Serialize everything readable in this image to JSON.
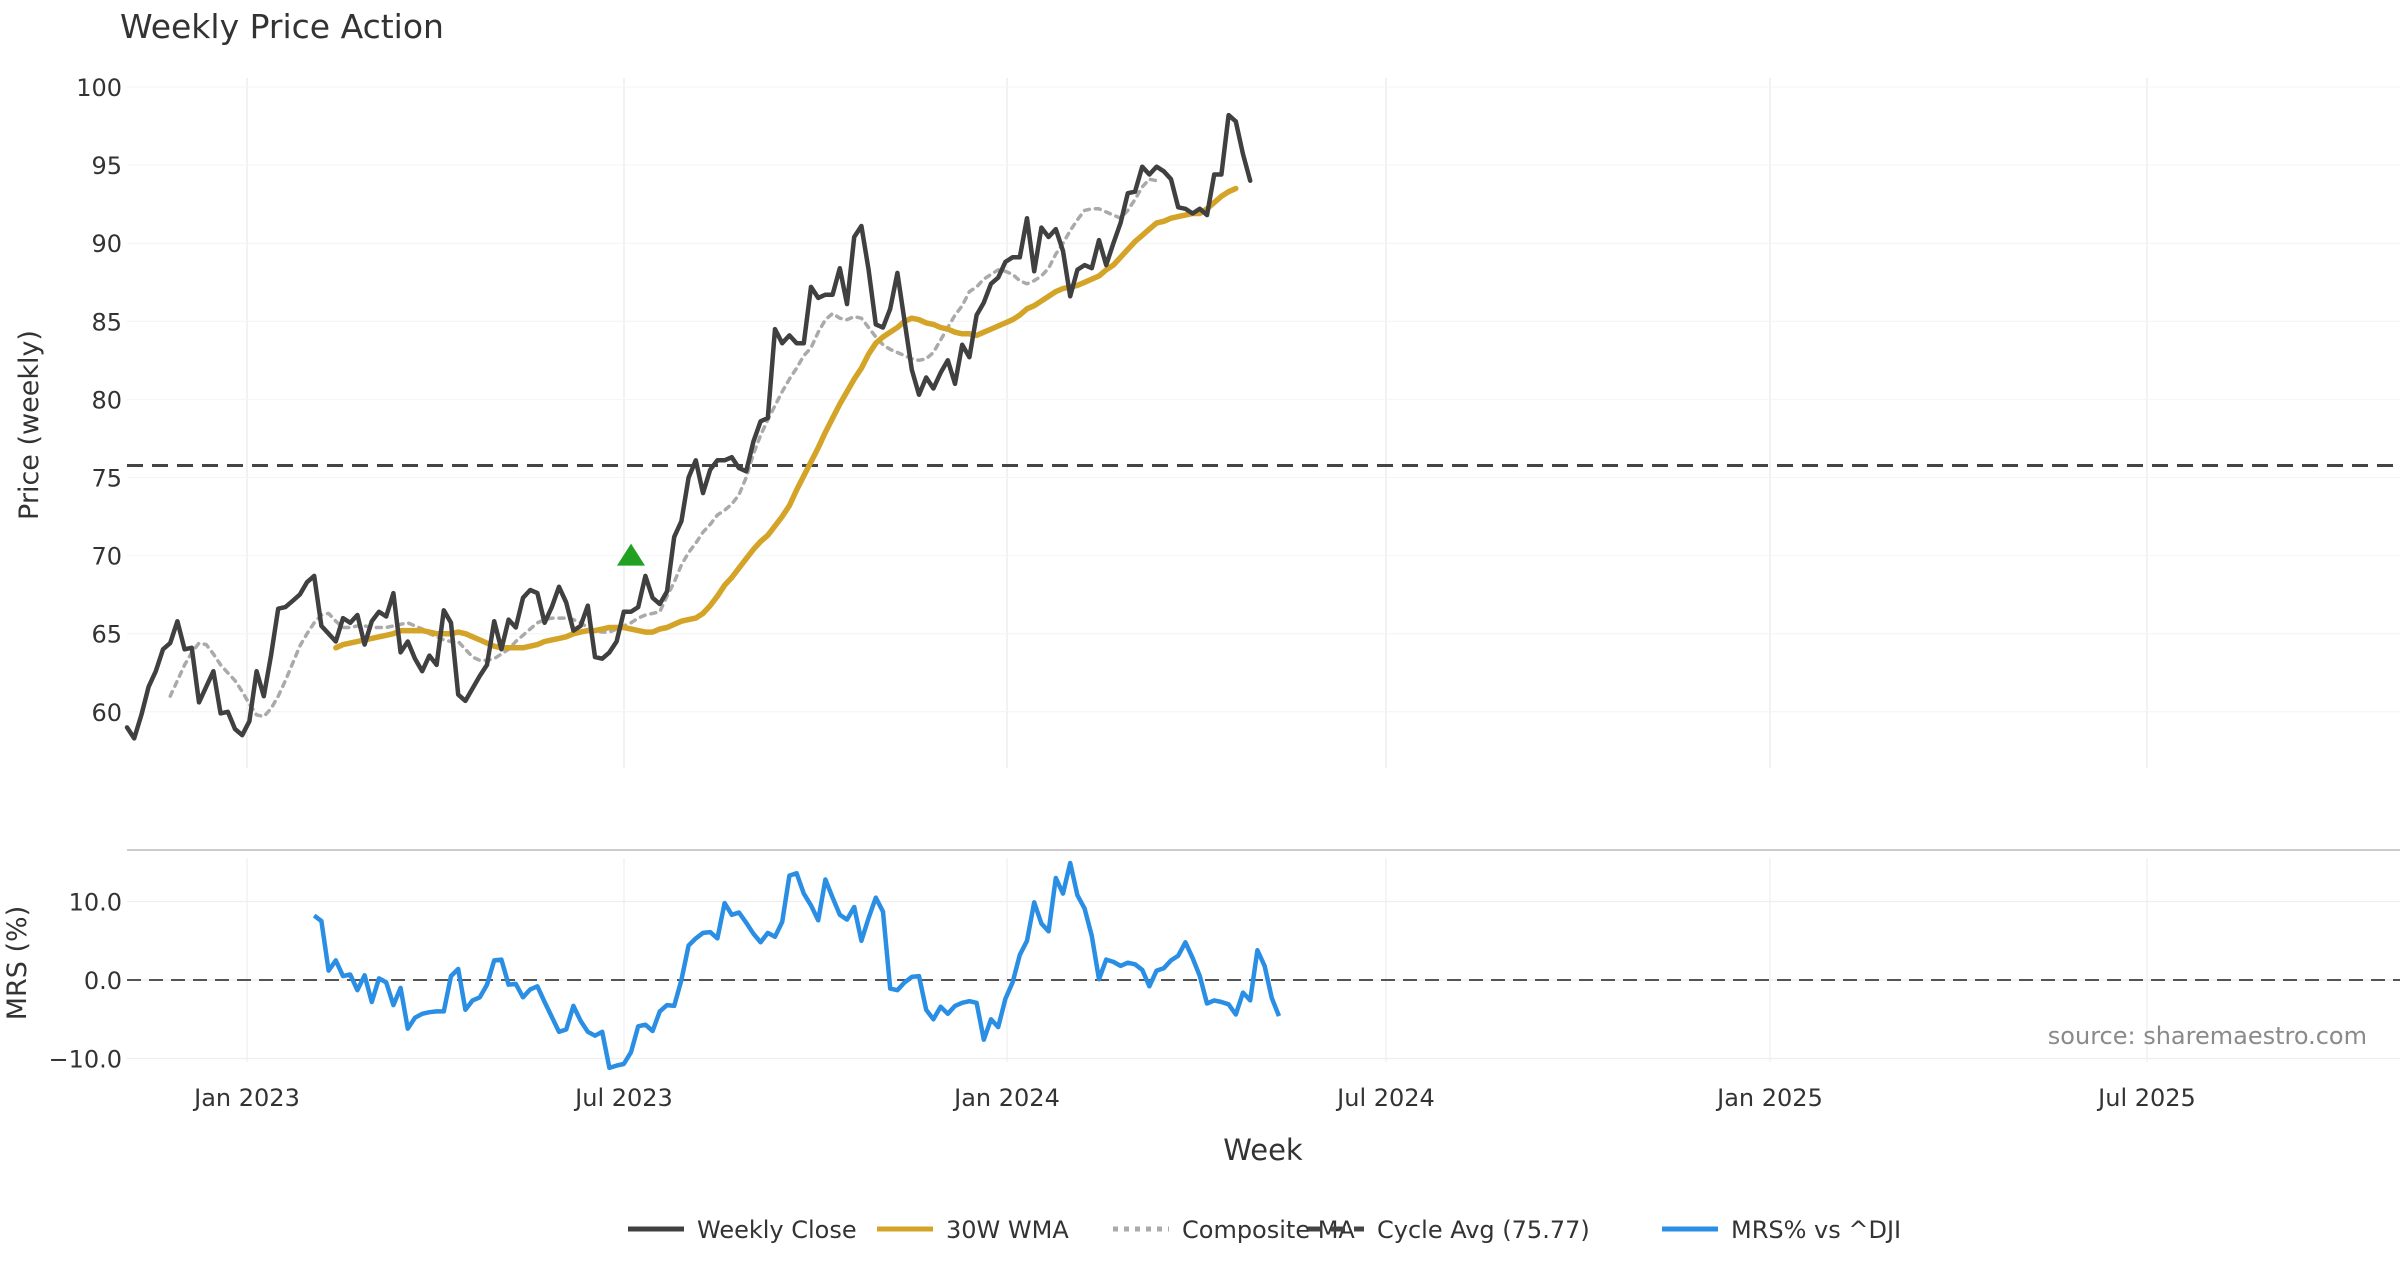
{
  "chart_data": {
    "type": "line",
    "title": "Weekly Price Action",
    "xlabel": "Week",
    "x_tick_labels": [
      "Jan 2023",
      "Jul 2023",
      "Jan 2024",
      "Jul 2024",
      "Jan 2025",
      "Jul 2025"
    ],
    "price_panel": {
      "ylabel": "Price (weekly)",
      "ylim": [
        56,
        101
      ],
      "y_ticks": [
        "60",
        "65",
        "70",
        "75",
        "80",
        "85",
        "90",
        "95",
        "100"
      ],
      "cycle_avg": 75.77,
      "signal_marker": {
        "week_index": 70,
        "value": 70
      },
      "series": [
        {
          "name": "Weekly Close",
          "color": "#404040",
          "start": 0,
          "values": [
            59.0,
            58.3,
            59.8,
            61.6,
            62.6,
            64.0,
            64.4,
            65.8,
            64.0,
            64.1,
            60.6,
            61.6,
            62.6,
            59.9,
            60.0,
            58.9,
            58.5,
            59.4,
            62.6,
            61.0,
            63.6,
            66.6,
            66.7,
            67.1,
            67.5,
            68.3,
            68.7,
            65.5,
            65.0,
            64.5,
            66.0,
            65.7,
            66.2,
            64.3,
            65.8,
            66.4,
            66.1,
            67.6,
            63.8,
            64.5,
            63.4,
            62.6,
            63.6,
            63.0,
            66.5,
            65.7,
            61.1,
            60.7,
            61.5,
            62.3,
            63.0,
            65.8,
            64.0,
            65.9,
            65.4,
            67.3,
            67.8,
            67.6,
            65.7,
            66.7,
            68.0,
            67.0,
            65.2,
            65.5,
            66.8,
            63.5,
            63.4,
            63.8,
            64.5,
            66.4,
            66.4,
            66.7,
            68.7,
            67.3,
            66.9,
            67.7,
            71.2,
            72.2,
            75.0,
            76.1,
            74.0,
            75.5,
            76.1,
            76.1,
            76.3,
            75.6,
            75.4,
            77.3,
            78.6,
            78.8,
            84.5,
            83.6,
            84.1,
            83.6,
            83.6,
            87.2,
            86.5,
            86.7,
            86.7,
            88.4,
            86.1,
            90.4,
            91.1,
            88.3,
            84.8,
            84.6,
            85.8,
            88.1,
            85.0,
            81.9,
            80.3,
            81.4,
            80.7,
            81.7,
            82.5,
            81.0,
            83.5,
            82.7,
            85.4,
            86.2,
            87.4,
            87.8,
            88.8,
            89.1,
            89.1,
            91.6,
            88.2,
            91.0,
            90.4,
            90.9,
            89.5,
            86.6,
            88.3,
            88.6,
            88.4,
            90.2,
            88.6,
            90.0,
            91.3,
            93.2,
            93.3,
            94.9,
            94.4,
            94.9,
            94.6,
            94.1,
            92.3,
            92.2,
            91.9,
            92.2,
            91.8,
            94.4,
            94.4,
            98.2,
            97.8,
            95.7,
            94.0
          ]
        },
        {
          "name": "30W WMA",
          "color": "#D4A429",
          "start": 29,
          "values": [
            64.1,
            64.3,
            64.4,
            64.5,
            64.6,
            64.7,
            64.8,
            64.9,
            65.0,
            65.2,
            65.2,
            65.2,
            65.2,
            65.1,
            65.0,
            65.0,
            65.0,
            65.1,
            65.0,
            64.8,
            64.6,
            64.4,
            64.2,
            64.1,
            64.1,
            64.1,
            64.1,
            64.2,
            64.3,
            64.5,
            64.6,
            64.7,
            64.8,
            65.0,
            65.1,
            65.2,
            65.2,
            65.3,
            65.4,
            65.4,
            65.4,
            65.3,
            65.2,
            65.1,
            65.1,
            65.3,
            65.4,
            65.6,
            65.8,
            65.9,
            66.0,
            66.3,
            66.8,
            67.4,
            68.1,
            68.6,
            69.2,
            69.8,
            70.4,
            70.9,
            71.3,
            71.9,
            72.5,
            73.2,
            74.2,
            75.1,
            76.0,
            76.9,
            77.9,
            78.8,
            79.7,
            80.5,
            81.3,
            82.0,
            82.9,
            83.6,
            84.0,
            84.3,
            84.6,
            85.0,
            85.2,
            85.1,
            84.9,
            84.8,
            84.6,
            84.5,
            84.3,
            84.2,
            84.2,
            84.1,
            84.3,
            84.5,
            84.7,
            84.9,
            85.1,
            85.4,
            85.8,
            86.0,
            86.3,
            86.6,
            86.9,
            87.1,
            87.2,
            87.3,
            87.5,
            87.7,
            87.9,
            88.3,
            88.6,
            89.1,
            89.6,
            90.1,
            90.5,
            90.9,
            91.3,
            91.4,
            91.6,
            91.7,
            91.8,
            91.9,
            91.9,
            92.2,
            92.6,
            93.0,
            93.3,
            93.5
          ]
        },
        {
          "name": "Composite MA",
          "color": "#AAAAAA",
          "start": 6,
          "values": [
            61.0,
            62.0,
            63.0,
            63.8,
            64.4,
            64.3,
            63.7,
            63.0,
            62.5,
            62.0,
            61.3,
            60.5,
            59.8,
            59.7,
            60.2,
            61.0,
            62.0,
            63.1,
            64.2,
            65.0,
            65.7,
            66.2,
            66.3,
            65.8,
            65.4,
            65.4,
            65.5,
            65.5,
            65.4,
            65.4,
            65.4,
            65.5,
            65.6,
            65.7,
            65.5,
            65.3,
            65.0,
            64.8,
            64.6,
            64.5,
            64.5,
            64.0,
            63.5,
            63.3,
            63.3,
            63.4,
            63.7,
            64.0,
            64.5,
            64.9,
            65.3,
            65.7,
            65.9,
            66.0,
            66.0,
            66.0,
            65.9,
            65.7,
            65.4,
            65.2,
            65.1,
            65.1,
            65.3,
            65.5,
            65.7,
            66.0,
            66.2,
            66.3,
            66.4,
            67.4,
            68.3,
            69.4,
            70.2,
            70.8,
            71.5,
            72.0,
            72.6,
            72.9,
            73.3,
            73.9,
            75.0,
            76.5,
            77.7,
            78.7,
            79.6,
            80.5,
            81.3,
            82.0,
            82.8,
            83.3,
            84.3,
            85.1,
            85.5,
            85.2,
            85.1,
            85.3,
            85.2,
            84.6,
            84.0,
            83.5,
            83.2,
            83.0,
            82.8,
            82.6,
            82.5,
            82.6,
            83.0,
            83.8,
            84.6,
            85.4,
            86.0,
            86.9,
            87.2,
            87.7,
            88.0,
            88.3,
            88.2,
            88.0,
            87.6,
            87.4,
            87.6,
            87.9,
            88.4,
            89.3,
            90.0,
            90.8,
            91.5,
            92.1,
            92.2,
            92.2,
            92.0,
            91.8,
            91.6,
            92.1,
            92.8,
            93.6,
            94.1,
            94.0
          ]
        }
      ]
    },
    "mrs_panel": {
      "ylabel": "MRS (%)",
      "ylim": [
        -12,
        16
      ],
      "y_ticks": [
        "10.0",
        "0.0",
        "−10.0"
      ],
      "zero_line": 0,
      "series": [
        {
          "name": "MRS% vs ^DJI",
          "color": "#2A8FE4",
          "start": 26,
          "values": [
            8.2,
            7.5,
            1.2,
            2.5,
            0.5,
            0.7,
            -1.3,
            0.6,
            -2.8,
            0.2,
            -0.3,
            -3.2,
            -1.0,
            -6.2,
            -4.8,
            -4.3,
            -4.1,
            -4.0,
            -4.0,
            0.5,
            1.4,
            -3.8,
            -2.6,
            -2.2,
            -0.6,
            2.5,
            2.6,
            -0.6,
            -0.5,
            -2.2,
            -1.2,
            -0.8,
            -2.8,
            -4.7,
            -6.6,
            -6.3,
            -3.3,
            -5.2,
            -6.6,
            -7.1,
            -6.6,
            -11.2,
            -10.9,
            -10.7,
            -9.2,
            -5.9,
            -5.7,
            -6.5,
            -4.0,
            -3.2,
            -3.3,
            0.0,
            4.4,
            5.3,
            6.0,
            6.1,
            5.3,
            9.8,
            8.3,
            8.6,
            7.3,
            5.9,
            4.8,
            6.0,
            5.5,
            7.4,
            13.3,
            13.6,
            11.0,
            9.5,
            7.6,
            12.8,
            10.5,
            8.3,
            7.7,
            9.3,
            5.0,
            7.9,
            10.5,
            8.7,
            -1.1,
            -1.3,
            -0.3,
            0.4,
            0.5,
            -3.8,
            -5.0,
            -3.4,
            -4.3,
            -3.3,
            -2.9,
            -2.7,
            -2.9,
            -7.6,
            -5.0,
            -6.0,
            -2.4,
            -0.3,
            3.2,
            5.0,
            9.9,
            7.2,
            6.2,
            13.0,
            11.0,
            14.9,
            10.8,
            9.1,
            5.6,
            0.1,
            2.6,
            2.3,
            1.8,
            2.2,
            2.0,
            1.3,
            -0.8,
            1.2,
            1.5,
            2.5,
            3.1,
            4.8,
            2.8,
            0.5,
            -3.0,
            -2.6,
            -2.8,
            -3.1,
            -4.4,
            -1.6,
            -2.6,
            3.8,
            1.8,
            -2.3,
            -4.6
          ]
        }
      ]
    },
    "legend": {
      "placement": "bottom-center",
      "entries": [
        "Weekly Close",
        "30W WMA",
        "Composite MA",
        "Cycle Avg (75.77)",
        "MRS% vs ^DJI"
      ]
    },
    "annotation": "source: sharemaestro.com",
    "grid": true
  }
}
